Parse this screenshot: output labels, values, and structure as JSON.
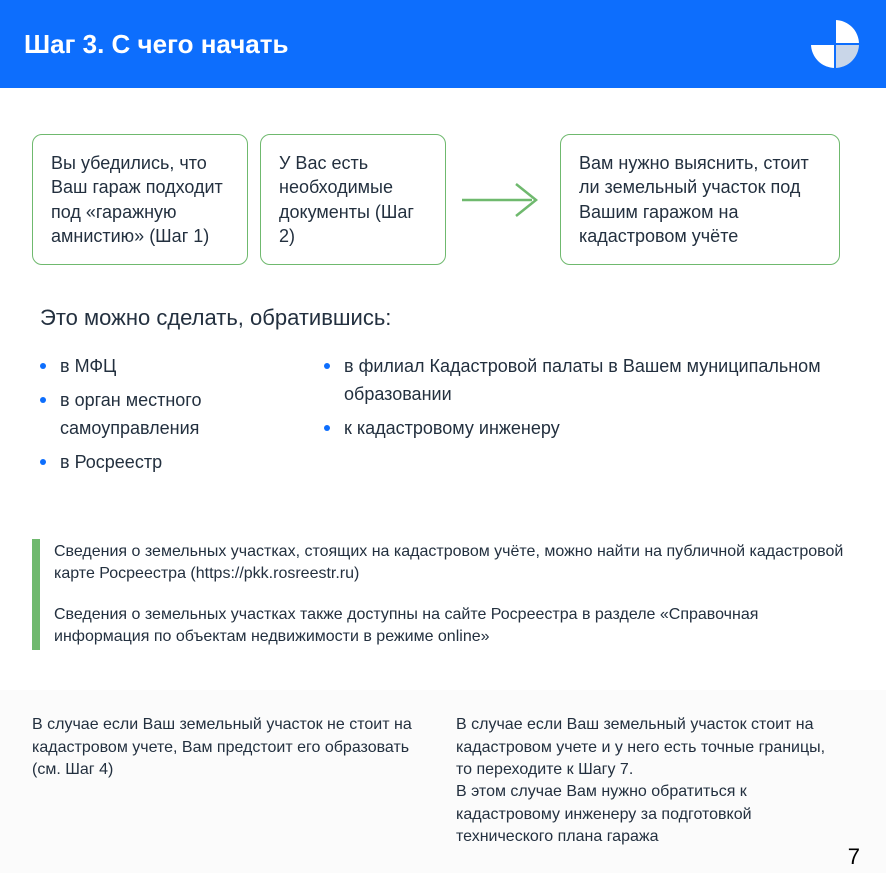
{
  "header": {
    "title": "Шаг 3. С чего начать"
  },
  "flow": {
    "box1": "Вы убедились, что Ваш гараж подходит под «гаражную амнистию» (Шаг 1)",
    "box2": "У Вас есть необходимые документы (Шаг 2)",
    "box3": "Вам нужно выяснить, стоит ли земельный участок под Вашим гаражом на кадастровом учёте",
    "arrow_color": "#6fb96e",
    "box_border_color": "#6fb96e"
  },
  "section": {
    "title": "Это можно сделать, обратившись:",
    "list_col1": [
      "в МФЦ",
      "в орган местного самоуправления",
      "в Росреестр"
    ],
    "list_col2": [
      "в филиал Кадастровой палаты в Вашем муниципальном образовании",
      "к кадастровому инженеру"
    ]
  },
  "notes": {
    "p1": "Сведения о земельных участках, стоящих на кадастровом учёте, можно найти на публичной кадастровой карте Росреестра (https://pkk.rosreestr.ru)",
    "p2": "Сведения о земельных участках также доступны на сайте Росреестра в разделе «Справочная информация по объектам недвижимости в режиме online»"
  },
  "footer": {
    "col1": "В случае если Ваш земельный участок не стоит на кадастровом учете, Вам предстоит его образовать (см. Шаг 4)",
    "col2": "В случае если Ваш земельный участок стоит на кадастровом учете и у него есть точные границы, то переходите к Шагу 7.\nВ этом случае Вам нужно обратиться к кадастровому инженеру за подготовкой технического плана гаража"
  },
  "page_number": "7",
  "colors": {
    "header_bg": "#0d6efd",
    "accent_green": "#6fb96e",
    "bullet": "#0d6efd",
    "text": "#23303f"
  }
}
